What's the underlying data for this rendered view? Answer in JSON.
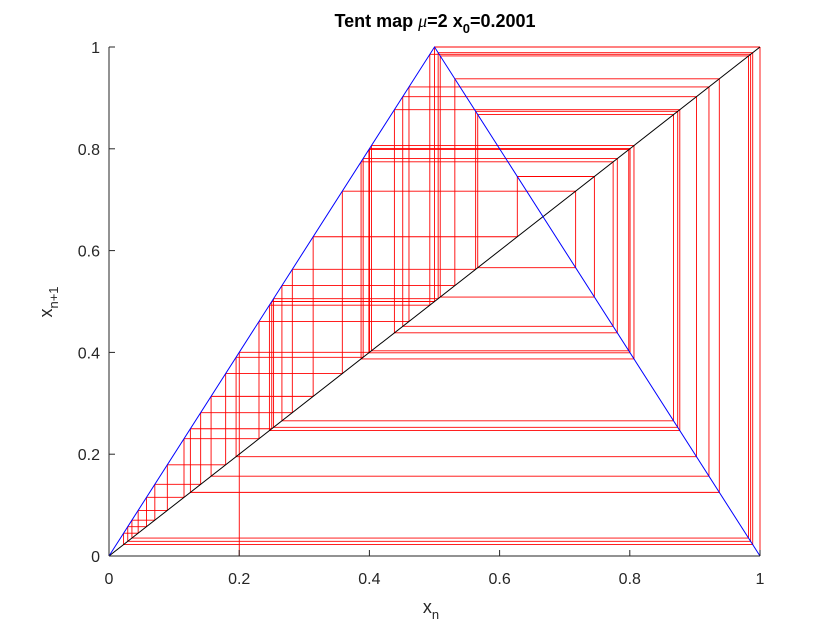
{
  "chart_data": {
    "type": "line",
    "title": {
      "prefix": "Tent map ",
      "mu_symbol": "μ",
      "mu_value": "=2 x",
      "x0_sub": "0",
      "x0_value": "=0.2001"
    },
    "xlabel": {
      "main": "x",
      "sub": "n"
    },
    "ylabel": {
      "main": "x",
      "sub": "n+1"
    },
    "xlim": [
      0,
      1
    ],
    "ylim": [
      0,
      1
    ],
    "xticks": [
      0,
      0.2,
      0.4,
      0.6,
      0.8,
      1
    ],
    "yticks": [
      0,
      0.2,
      0.4,
      0.6,
      0.8,
      1
    ],
    "xtick_labels": [
      "0",
      "0.2",
      "0.4",
      "0.6",
      "0.8",
      "1"
    ],
    "ytick_labels": [
      "0",
      "0.2",
      "0.4",
      "0.6",
      "0.8",
      "1"
    ],
    "grid": false,
    "mu": 2,
    "x0": 0.2001,
    "iterations": 150,
    "series": [
      {
        "name": "tent-map",
        "color": "#0000ff",
        "points": [
          [
            0,
            0
          ],
          [
            0.5,
            1
          ],
          [
            1,
            0
          ]
        ]
      },
      {
        "name": "identity-line",
        "color": "#000000",
        "points": [
          [
            0,
            0
          ],
          [
            1,
            1
          ]
        ]
      },
      {
        "name": "cobweb",
        "color": "#ff0000",
        "generated_from": "cobweb iteration of x_{n+1} = mu*min(x_n, 1-x_n) starting at x0"
      }
    ]
  }
}
